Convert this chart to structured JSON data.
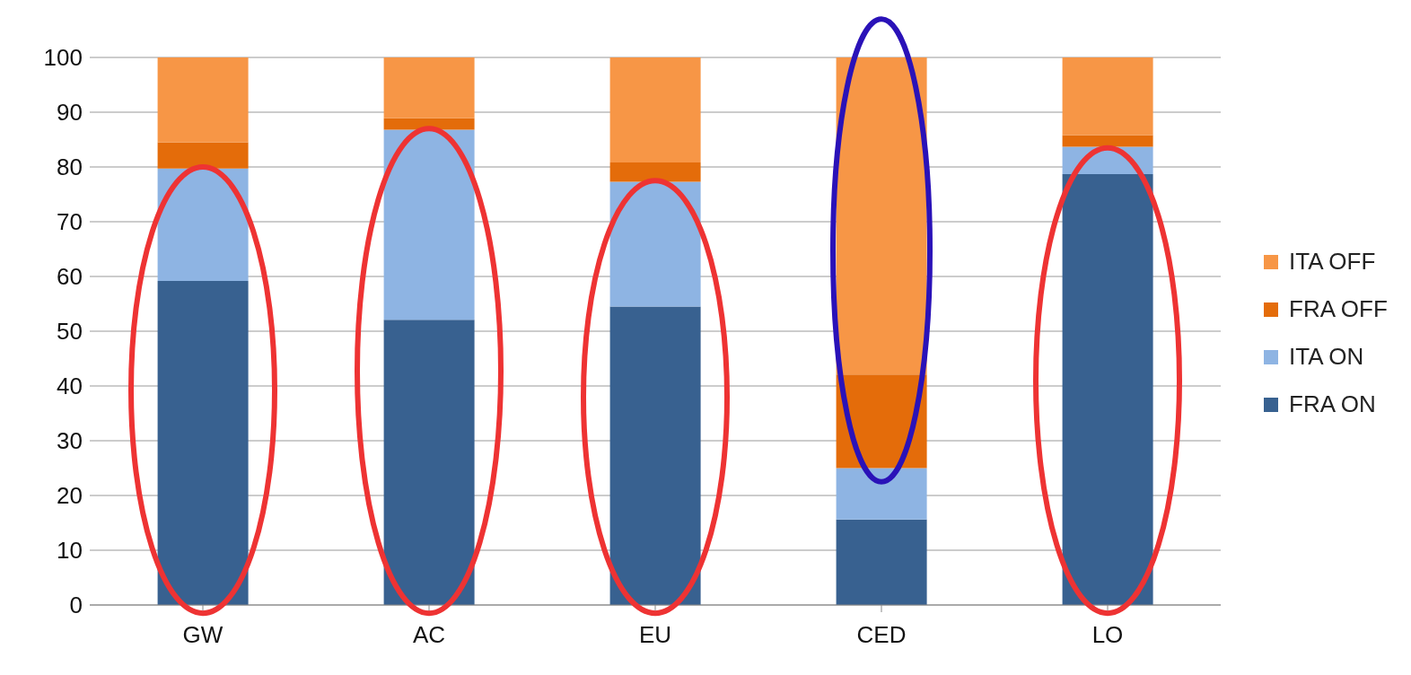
{
  "chart_data": {
    "type": "bar",
    "stacked": true,
    "categories": [
      "GW",
      "AC",
      "EU",
      "CED",
      "LO"
    ],
    "series": [
      {
        "name": "FRA ON",
        "color": "#386190",
        "values": [
          59.2,
          52.1,
          54.5,
          15.6,
          78.7
        ]
      },
      {
        "name": "ITA ON",
        "color": "#8eb4e3",
        "values": [
          20.5,
          34.7,
          22.8,
          9.4,
          5.0
        ]
      },
      {
        "name": "FRA OFF",
        "color": "#e46c0a",
        "values": [
          4.8,
          2.1,
          3.5,
          17.1,
          2.1
        ]
      },
      {
        "name": "ITA OFF",
        "color": "#f79646",
        "values": [
          15.5,
          11.1,
          19.2,
          57.9,
          14.2
        ]
      }
    ],
    "ylim": [
      0,
      100
    ],
    "yticks": [
      0,
      10,
      20,
      30,
      40,
      50,
      60,
      70,
      80,
      90,
      100
    ],
    "grid": "y",
    "legend": "right"
  }
}
